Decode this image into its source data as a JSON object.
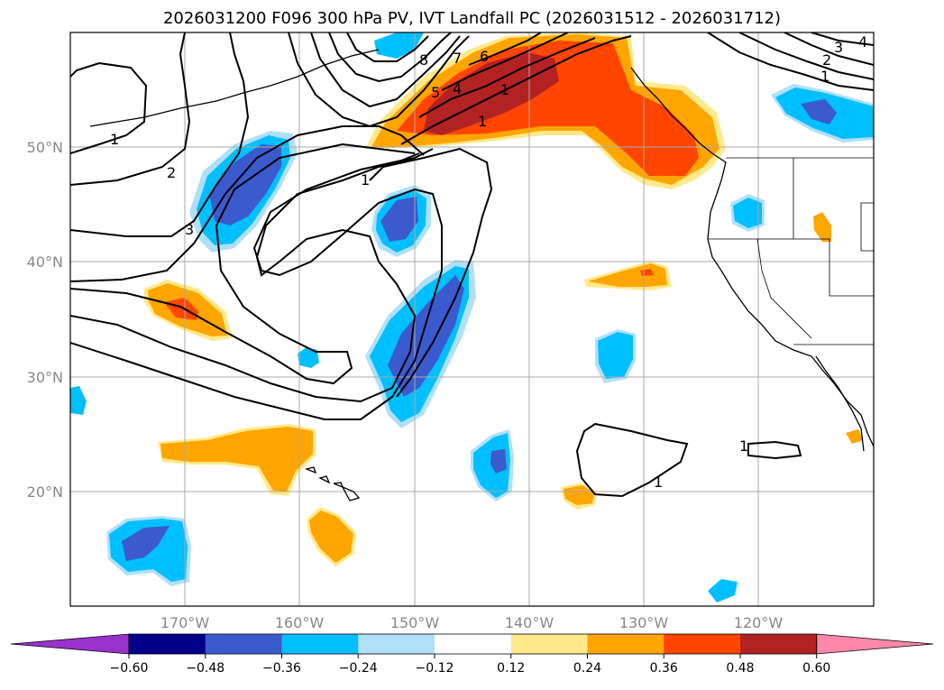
{
  "title": "2026031200 F096 300 hPa PV, IVT Landfall PC (2026031512 - 2026031712)",
  "lat_labels": [
    "50°N",
    "40°N",
    "30°N",
    "20°N"
  ],
  "lon_labels": [
    "170°W",
    "160°W",
    "150°W",
    "140°W",
    "130°W",
    "120°W"
  ],
  "colorbar": {
    "ticks": [
      "−0.60",
      "−0.48",
      "−0.36",
      "−0.24",
      "−0.12",
      "0.12",
      "0.24",
      "0.36",
      "0.48",
      "0.60"
    ],
    "colors": [
      "#9932cc",
      "#00008b",
      "#3a5acd",
      "#00bfff",
      "#b0e0f8",
      "#ffffff",
      "#ffe98a",
      "#ffa500",
      "#ff4500",
      "#b22222",
      "#ff88aa"
    ]
  },
  "contour_labels": [
    "1",
    "2",
    "3",
    "4",
    "5",
    "6",
    "7",
    "8",
    "1",
    "1",
    "1",
    "1",
    "2",
    "3",
    "4",
    "1",
    "1"
  ],
  "colors": {
    "positive": "#ffa500",
    "strong_positive": "#ff4500",
    "very_strong": "#b22222",
    "negative": "#00bfff",
    "strong_negative": "#3a5acd",
    "light_negative": "#b0e0f8",
    "light_positive": "#ffe98a"
  }
}
